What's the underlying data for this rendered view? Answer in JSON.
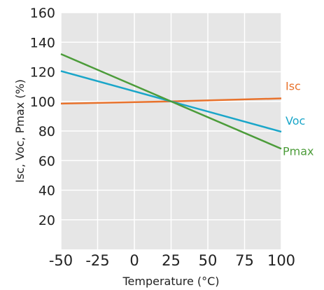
{
  "chart_data": {
    "type": "line",
    "xlabel": "Temperature (°C)",
    "ylabel": "Isc, Voc, Pmax (%)",
    "xlim": [
      -50,
      100
    ],
    "ylim": [
      0,
      160
    ],
    "xticks": [
      -50,
      -25,
      0,
      25,
      50,
      75,
      100
    ],
    "yticks": [
      20,
      40,
      60,
      80,
      100,
      120,
      140,
      160
    ],
    "grid": true,
    "legend": "inline labels at right end of lines",
    "colors": {
      "plot_bg": "#e6e6e6",
      "grid": "#ffffff"
    },
    "series": [
      {
        "name": "Isc",
        "color": "#e8722c",
        "x": [
          -50,
          25,
          100
        ],
        "y": [
          98.5,
          100,
          102
        ]
      },
      {
        "name": "Voc",
        "color": "#1aa6c9",
        "x": [
          -50,
          25,
          100
        ],
        "y": [
          120.5,
          100,
          79.5
        ]
      },
      {
        "name": "Pmax",
        "color": "#4c9c3a",
        "x": [
          -50,
          25,
          100
        ],
        "y": [
          132,
          100,
          68
        ]
      }
    ]
  }
}
